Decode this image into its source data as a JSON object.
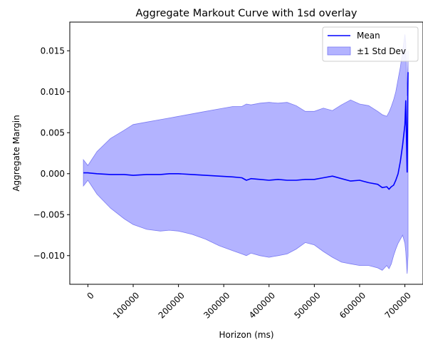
{
  "chart_data": {
    "type": "area",
    "title": "Aggregate Markout Curve with 1sd overlay",
    "xlabel": "Horizon (ms)",
    "ylabel": "Aggregate Margin",
    "xlim": [
      -40000,
      740000
    ],
    "ylim": [
      -0.0135,
      0.0185
    ],
    "x_ticks": [
      0,
      100000,
      200000,
      300000,
      400000,
      500000,
      600000,
      700000
    ],
    "y_ticks": [
      -0.01,
      -0.005,
      0.0,
      0.005,
      0.01,
      0.015
    ],
    "x_tick_labels": [
      "0",
      "100000",
      "200000",
      "300000",
      "400000",
      "500000",
      "600000",
      "700000"
    ],
    "y_tick_labels": [
      "−0.010",
      "−0.005",
      "0.000",
      "0.005",
      "0.010",
      "0.015"
    ],
    "grid": false,
    "legend_position": "top-right",
    "colors": {
      "mean": "#0000ff",
      "band": "#b3b3ff",
      "band_edge": "#7b7bf2"
    },
    "series": [
      {
        "name": "Mean",
        "x": [
          -10000,
          0,
          20000,
          50000,
          80000,
          100000,
          130000,
          160000,
          180000,
          200000,
          230000,
          260000,
          290000,
          320000,
          340000,
          350000,
          360000,
          380000,
          400000,
          420000,
          440000,
          460000,
          480000,
          500000,
          520000,
          540000,
          560000,
          580000,
          600000,
          620000,
          640000,
          650000,
          660000,
          665000,
          670000,
          675000,
          680000,
          685000,
          690000,
          695000,
          700000,
          702000,
          705000,
          707000
        ],
        "values": [
          0.0001,
          0.0001,
          0.0,
          -0.0001,
          -0.0001,
          -0.0002,
          -0.0001,
          -0.0001,
          0.0,
          0.0,
          -0.0001,
          -0.0002,
          -0.0003,
          -0.0004,
          -0.0005,
          -0.0008,
          -0.0006,
          -0.0007,
          -0.0008,
          -0.0007,
          -0.0008,
          -0.0008,
          -0.0007,
          -0.0007,
          -0.0005,
          -0.0003,
          -0.0006,
          -0.0009,
          -0.0008,
          -0.0011,
          -0.0013,
          -0.0017,
          -0.0016,
          -0.0019,
          -0.0016,
          -0.0014,
          -0.0008,
          0.0,
          0.0015,
          0.0035,
          0.006,
          0.0089,
          0.0002,
          0.0124
        ]
      },
      {
        "name": "±1 Std Dev",
        "x": [
          -10000,
          0,
          20000,
          50000,
          80000,
          100000,
          130000,
          160000,
          180000,
          200000,
          230000,
          260000,
          290000,
          320000,
          340000,
          350000,
          360000,
          380000,
          400000,
          420000,
          440000,
          460000,
          480000,
          500000,
          520000,
          540000,
          560000,
          580000,
          600000,
          620000,
          640000,
          650000,
          660000,
          665000,
          670000,
          675000,
          680000,
          685000,
          690000,
          695000,
          700000,
          702000,
          705000,
          707000
        ],
        "upper": [
          0.0017,
          0.001,
          0.0027,
          0.0043,
          0.0053,
          0.006,
          0.0063,
          0.0066,
          0.0068,
          0.007,
          0.0073,
          0.0076,
          0.0079,
          0.0082,
          0.0082,
          0.0085,
          0.0084,
          0.0086,
          0.0087,
          0.0086,
          0.0087,
          0.0083,
          0.0076,
          0.0076,
          0.008,
          0.0077,
          0.0084,
          0.009,
          0.0085,
          0.0083,
          0.0076,
          0.0072,
          0.007,
          0.0075,
          0.0082,
          0.009,
          0.01,
          0.0115,
          0.013,
          0.015,
          0.017,
          0.016,
          0.0095,
          0.015
        ],
        "lower": [
          -0.0015,
          -0.0008,
          -0.0025,
          -0.0042,
          -0.0055,
          -0.0062,
          -0.0068,
          -0.007,
          -0.0069,
          -0.007,
          -0.0074,
          -0.008,
          -0.0088,
          -0.0094,
          -0.0098,
          -0.01,
          -0.0097,
          -0.01,
          -0.0102,
          -0.01,
          -0.0098,
          -0.0092,
          -0.0084,
          -0.0087,
          -0.0095,
          -0.0102,
          -0.0108,
          -0.011,
          -0.0112,
          -0.0112,
          -0.0115,
          -0.0118,
          -0.0112,
          -0.0116,
          -0.011,
          -0.01,
          -0.0092,
          -0.0085,
          -0.008,
          -0.0075,
          -0.0085,
          -0.0095,
          -0.0122,
          -0.01
        ]
      }
    ]
  }
}
